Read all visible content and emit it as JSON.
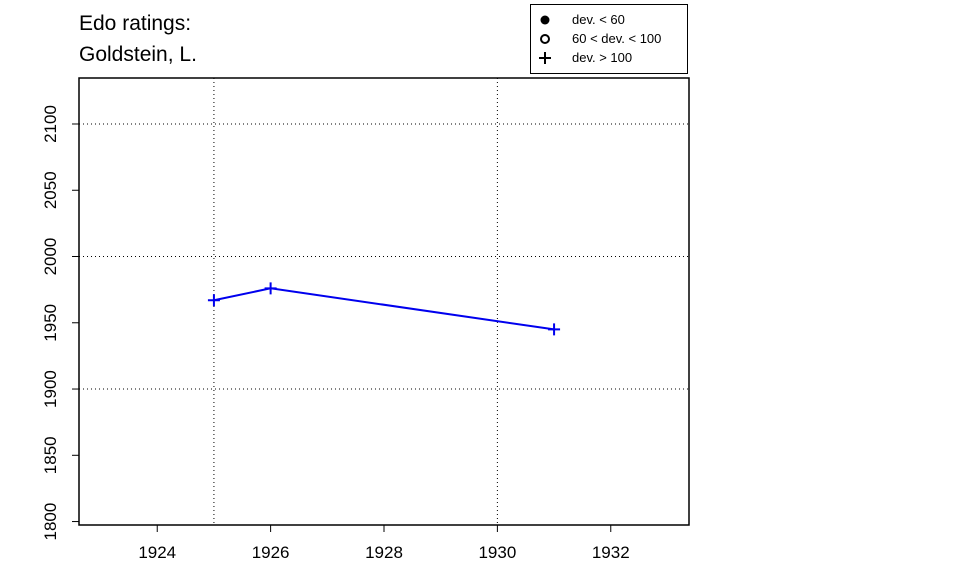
{
  "chart_data": {
    "type": "line",
    "title": [
      "Edo ratings:",
      "Goldstein, L."
    ],
    "x": [
      1925,
      1926,
      1931
    ],
    "series": [
      {
        "color": "#0000ee",
        "values": [
          1967,
          1976,
          1945
        ],
        "marker": "+"
      }
    ],
    "xlim": [
      1922.62,
      1933.38
    ],
    "xticks": [
      1924,
      1926,
      1928,
      1930,
      1932
    ],
    "ylim": [
      1797.4,
      2134.7
    ],
    "yticks": [
      1800,
      1850,
      1900,
      1950,
      2000,
      2050,
      2100
    ],
    "xgrid": [
      1925,
      1930
    ],
    "ygrid": [
      1900,
      2000,
      2100
    ],
    "legend": {
      "position": "top-right",
      "entries": [
        {
          "label": "dev. < 60",
          "marker": "filled-circle"
        },
        {
          "label": "60 < dev. < 100",
          "marker": "open-circle"
        },
        {
          "label": "dev. > 100",
          "marker": "plus"
        }
      ]
    }
  }
}
